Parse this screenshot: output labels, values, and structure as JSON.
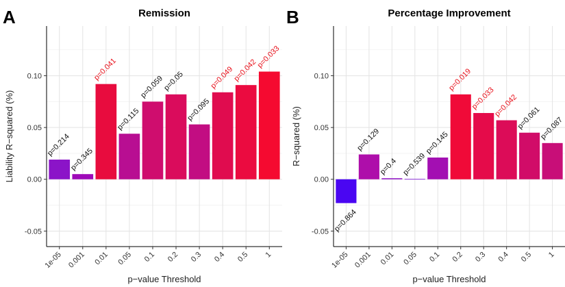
{
  "chart_data": [
    {
      "panel": "A",
      "type": "bar",
      "title": "Remission",
      "xlabel": "p−value Threshold",
      "ylabel": "Liability R−squared (%)",
      "ylim": [
        -0.065,
        0.148
      ],
      "yticks": [
        "-0.05",
        "0.00",
        "0.05",
        "0.10"
      ],
      "grid": true,
      "categories": [
        "1e-05",
        "0.001",
        "0.01",
        "0.05",
        "0.1",
        "0.2",
        "0.3",
        "0.4",
        "0.5",
        "1"
      ],
      "values": [
        0.019,
        0.005,
        0.092,
        0.044,
        0.075,
        0.082,
        0.053,
        0.084,
        0.091,
        0.104
      ],
      "labels": [
        "p=0.214",
        "p=0.345",
        "p=0.041",
        "p=0.115",
        "p=0.059",
        "p=0.05",
        "p=0.095",
        "p=0.049",
        "p=0.042",
        "p=0.033"
      ],
      "significant": [
        false,
        false,
        true,
        false,
        false,
        false,
        false,
        true,
        true,
        true
      ],
      "colors": [
        "#8b14c8",
        "#9e0ab8",
        "#e80c3e",
        "#b80e92",
        "#cf0d6e",
        "#da0c5c",
        "#c20d82",
        "#e00c4f",
        "#eb0b40",
        "#f50a30"
      ]
    },
    {
      "panel": "B",
      "type": "bar",
      "title": "Percentage Improvement",
      "xlabel": "p−value Threshold",
      "ylabel": "R−squared (%)",
      "ylim": [
        -0.065,
        0.148
      ],
      "yticks": [
        "-0.05",
        "0.00",
        "0.05",
        "0.10"
      ],
      "grid": true,
      "categories": [
        "1e-05",
        "0.001",
        "0.01",
        "0.05",
        "0.1",
        "0.2",
        "0.3",
        "0.4",
        "0.5",
        "1"
      ],
      "values": [
        -0.023,
        0.024,
        0.001,
        0.0003,
        0.021,
        0.082,
        0.064,
        0.057,
        0.045,
        0.035
      ],
      "labels": [
        "p=0.864",
        "p=0.129",
        "p=0.4",
        "p=0.539",
        "p=0.145",
        "p=0.019",
        "p=0.033",
        "p=0.042",
        "p=0.061",
        "p=0.087"
      ],
      "significant": [
        false,
        false,
        false,
        false,
        false,
        true,
        true,
        true,
        false,
        false
      ],
      "colors": [
        "#4a06f2",
        "#ae0eaa",
        "#8f10c4",
        "#7a0cd5",
        "#a30fb2",
        "#f00a38",
        "#e50b4a",
        "#dc0c58",
        "#d10c68",
        "#c80e78"
      ]
    }
  ]
}
